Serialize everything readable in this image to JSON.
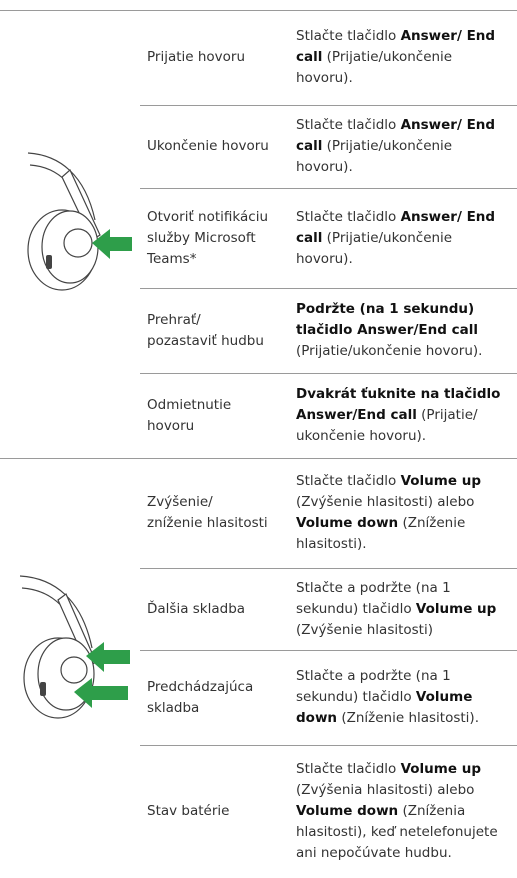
{
  "sections": [
    {
      "rows": [
        {
          "label": "Prijatie hovoru",
          "description": [
            {
              "text": "Stlačte tlačidlo "
            },
            {
              "text": "Answer/ End call",
              "bold": true
            },
            {
              "text": " (Prijatie/ukončenie hovoru)."
            }
          ]
        },
        {
          "label": "Ukončenie hovoru",
          "description": [
            {
              "text": "Stlačte tlačidlo "
            },
            {
              "text": "Answer/ End call",
              "bold": true
            },
            {
              "text": " (Prijatie/ukončenie hovoru)."
            }
          ]
        },
        {
          "label": "Otvoriť notifikáciu služby Microsoft Teams*",
          "description": [
            {
              "text": "Stlačte tlačidlo "
            },
            {
              "text": "Answer/ End call",
              "bold": true
            },
            {
              "text": " (Prijatie/ukončenie hovoru)."
            }
          ]
        },
        {
          "label": "Prehrať/ pozastaviť hudbu",
          "description": [
            {
              "text": "Podržte (na 1 sekundu) tlačidlo Answer/End call",
              "bold": true
            },
            {
              "text": " (Prijatie/ukončenie hovoru)."
            }
          ]
        },
        {
          "label": "Odmietnutie hovoru",
          "description": [
            {
              "text": "Dvakrát ťuknite na tlačidlo Answer/End call",
              "bold": true
            },
            {
              "text": " (Prijatie/ ukončenie hovoru)."
            }
          ]
        }
      ]
    },
    {
      "rows": [
        {
          "label": "Zvýšenie/ zníženie hlasitosti",
          "description": [
            {
              "text": "Stlačte tlačidlo "
            },
            {
              "text": "Volume up",
              "bold": true
            },
            {
              "text": " (Zvýšenie hlasitosti) alebo "
            },
            {
              "text": "Volume down",
              "bold": true
            },
            {
              "text": " (Zníženie hlasitosti)."
            }
          ]
        },
        {
          "label": "Ďalšia skladba",
          "description": [
            {
              "text": "Stlačte a podržte (na 1 sekundu) tlačidlo "
            },
            {
              "text": "Volume up",
              "bold": true
            },
            {
              "text": " (Zvýšenie hlasitosti)"
            }
          ]
        },
        {
          "label": "Predchádzajúca skladba",
          "description": [
            {
              "text": "Stlačte a podržte (na 1 sekundu) tlačidlo "
            },
            {
              "text": "Volume down",
              "bold": true
            },
            {
              "text": " (Zníženie hlasitosti)."
            }
          ]
        },
        {
          "label": "Stav batérie",
          "description": [
            {
              "text": "Stlačte tlačidlo "
            },
            {
              "text": "Volume up",
              "bold": true
            },
            {
              "text": " (Zvýšenia hlasitosti) alebo "
            },
            {
              "text": "Volume down",
              "bold": true
            },
            {
              "text": " (Zníženia hlasitosti), keď netelefonujete ani nepočúvate hudbu."
            }
          ]
        }
      ]
    }
  ]
}
